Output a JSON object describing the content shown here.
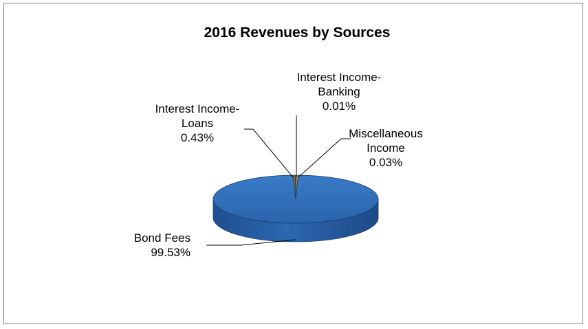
{
  "chart_data": {
    "type": "pie",
    "title": "2016 Revenues by Sources",
    "style": "3d",
    "categories": [
      "Bond Fees",
      "Interest Income-Loans",
      "Interest Income-Banking",
      "Miscellaneous Income"
    ],
    "values": [
      99.53,
      0.43,
      0.01,
      0.03
    ],
    "unit": "%",
    "data_labels": [
      {
        "lines": [
          "Bond Fees",
          "99.53%"
        ]
      },
      {
        "lines": [
          "Interest Income-",
          "Loans",
          "0.43%"
        ]
      },
      {
        "lines": [
          "Interest Income-",
          "Banking",
          "0.01%"
        ]
      },
      {
        "lines": [
          "Miscellaneous",
          "Income",
          "0.03%"
        ]
      }
    ],
    "colors": [
      "#2e6db4",
      "#6b7a2a",
      "#8a2c2a",
      "#d9b23f"
    ],
    "legend": "none"
  }
}
